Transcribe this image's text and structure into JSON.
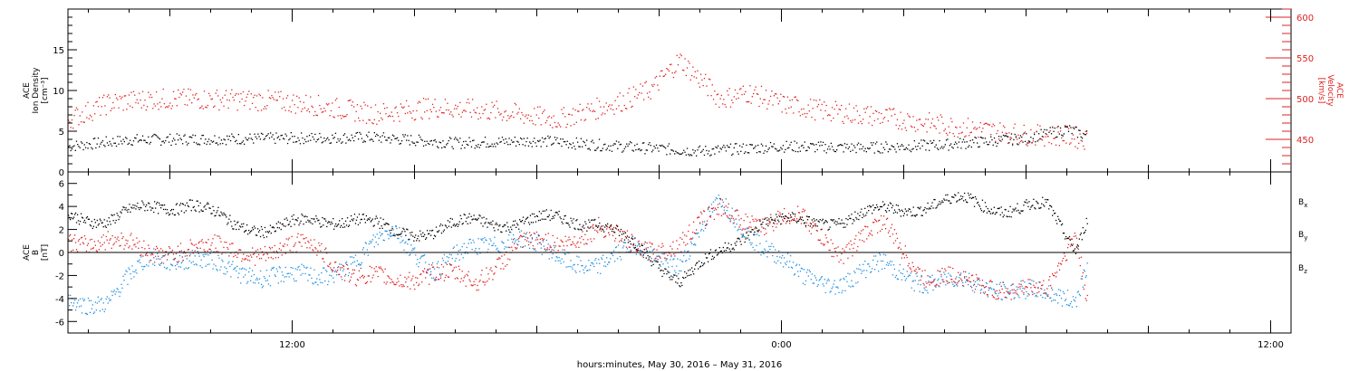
{
  "footer_label": "hours:minutes, May 30, 2016 – May 31, 2016",
  "colors": {
    "black": "#000000",
    "red": "#e02020",
    "blue": "#1f8fe0"
  },
  "chart_data": [
    {
      "type": "scatter",
      "panel": "top",
      "time_range_hours": [
        6.5,
        36.5
      ],
      "time_ticks": [
        "12:00",
        "0:00",
        "12:00"
      ],
      "left_axis": {
        "title_lines": [
          "ACE",
          "Ion Density",
          "[cm⁻³]"
        ],
        "ylim": [
          0,
          20
        ],
        "tick_labels": [
          "0",
          "5",
          "10",
          "15"
        ],
        "tick_values": [
          0,
          5,
          10,
          15
        ]
      },
      "right_axis": {
        "title_lines": [
          "ACE",
          "Velocity",
          "[km/s]"
        ],
        "ylim": [
          410,
          610
        ],
        "tick_labels": [
          "450",
          "500",
          "550",
          "600"
        ],
        "tick_values": [
          450,
          500,
          550,
          600
        ]
      },
      "series": [
        {
          "color": "black",
          "axis": "left",
          "x": [
            6.5,
            8,
            10,
            12,
            14,
            16,
            18,
            20,
            22,
            24,
            26,
            28,
            30,
            31,
            31.5
          ],
          "y": [
            3.2,
            4,
            4.1,
            4.2,
            4.3,
            3.6,
            3.9,
            3.2,
            2.6,
            3.2,
            3.0,
            3.4,
            4.2,
            5.3,
            4.5
          ],
          "spread": 0.7
        },
        {
          "color": "red",
          "axis": "right",
          "x": [
            6.5,
            7.5,
            8.5,
            10,
            11.5,
            12.5,
            14,
            15.5,
            17,
            18.5,
            20,
            20.8,
            21.5,
            22.5,
            23.2,
            24,
            25,
            26.5,
            28,
            30,
            31,
            31.5
          ],
          "y": [
            475,
            495,
            500,
            500,
            498,
            493,
            482,
            490,
            485,
            475,
            496,
            512,
            548,
            500,
            508,
            494,
            486,
            478,
            468,
            456,
            455,
            450
          ],
          "spread": 13
        }
      ]
    },
    {
      "type": "scatter",
      "panel": "bottom",
      "time_range_hours": [
        6.5,
        36.5
      ],
      "left_axis": {
        "title_lines": [
          "ACE",
          "B",
          "[nT]"
        ],
        "ylim": [
          -7,
          7
        ],
        "tick_labels": [
          "-6",
          "-4",
          "-2",
          "0",
          "2",
          "4",
          "6"
        ],
        "tick_values": [
          -6,
          -4,
          -2,
          0,
          2,
          4,
          6
        ]
      },
      "legend": [
        {
          "main": "B",
          "sub": "x",
          "color": "black"
        },
        {
          "main": "B",
          "sub": "y",
          "color": "blue"
        },
        {
          "main": "B",
          "sub": "z",
          "color": "red"
        }
      ],
      "series": [
        {
          "color": "black",
          "x": [
            6.5,
            7.5,
            8.5,
            9.5,
            10.5,
            11.5,
            12.5,
            13.5,
            14.5,
            15.5,
            16.5,
            17.5,
            18.5,
            19.5,
            20.5,
            21.5,
            22.5,
            23.5,
            24.5,
            25.5,
            26.5,
            27.5,
            28.5,
            29.5,
            30.5,
            31.2,
            31.5
          ],
          "y": [
            3.5,
            2.7,
            4.1,
            4.2,
            2.6,
            2.0,
            2.8,
            3.0,
            1.8,
            1.9,
            2.8,
            2.6,
            3.0,
            2.7,
            0.3,
            -2.3,
            0.0,
            2.8,
            2.6,
            2.9,
            3.7,
            4.1,
            4.6,
            3.8,
            4.0,
            0.5,
            3.3
          ],
          "spread": 0.5
        },
        {
          "color": "blue",
          "x": [
            6.5,
            7.5,
            8.5,
            9.5,
            10.5,
            11.5,
            12.5,
            13.5,
            14.5,
            15.5,
            16.5,
            17.5,
            18.5,
            19.5,
            20.5,
            21.5,
            22.5,
            23.5,
            24.5,
            25.5,
            26.5,
            27.5,
            28.5,
            29.5,
            30.5,
            31.2,
            31.5
          ],
          "y": [
            -4.0,
            -4.3,
            -0.3,
            -0.5,
            -1.5,
            -2.0,
            -2.2,
            -0.8,
            2.0,
            -1.5,
            0.5,
            1.5,
            -0.5,
            -1.0,
            0.5,
            -1.0,
            4.5,
            0.8,
            -2.2,
            -2.5,
            -1.0,
            -2.5,
            -2.6,
            -3.0,
            -3.8,
            -3.8,
            -0.5
          ],
          "spread": 0.8
        },
        {
          "color": "red",
          "x": [
            6.5,
            7.5,
            8.5,
            9.5,
            10.5,
            11.5,
            12.5,
            13.5,
            14.5,
            15.5,
            16.5,
            17.5,
            18.5,
            19.5,
            20.5,
            21.5,
            22.5,
            23.5,
            24.5,
            25.5,
            26.5,
            27.5,
            28.5,
            29.5,
            30.5,
            31.2,
            31.5
          ],
          "y": [
            1.0,
            1.2,
            0.0,
            0.5,
            0.3,
            0.0,
            0.8,
            -2.0,
            -2.5,
            -1.5,
            -2.8,
            1.0,
            0.5,
            2.5,
            0.0,
            1.0,
            3.8,
            2.5,
            3.0,
            0.0,
            2.5,
            -2.0,
            -2.5,
            -3.0,
            -3.5,
            2.0,
            -4.0
          ],
          "spread": 0.8
        }
      ]
    }
  ]
}
